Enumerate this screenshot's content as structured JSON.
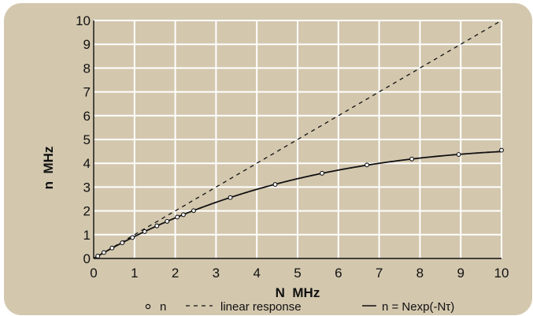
{
  "chart_data": {
    "type": "line",
    "xlabel": "N  MHz",
    "ylabel": "n  MHz",
    "xlim": [
      0,
      10
    ],
    "ylim": [
      0,
      10
    ],
    "xticks": [
      "0",
      "1",
      "2",
      "3",
      "4",
      "5",
      "6",
      "7",
      "8",
      "9",
      "10"
    ],
    "yticks": [
      "0",
      "1",
      "2",
      "3",
      "4",
      "5",
      "6",
      "7",
      "8",
      "9",
      "10"
    ],
    "grid": true,
    "legend_position": "bottom",
    "tau": 0.08,
    "series": [
      {
        "name": "n",
        "style": "markers",
        "x": [
          0.1,
          0.25,
          0.45,
          0.7,
          0.95,
          1.25,
          1.55,
          1.8,
          2.05,
          2.2,
          2.45,
          3.35,
          4.45,
          5.6,
          6.7,
          7.8,
          8.95,
          10.0
        ],
        "y": [
          0.1,
          0.25,
          0.44,
          0.66,
          0.88,
          1.13,
          1.37,
          1.56,
          1.74,
          1.84,
          2.01,
          2.56,
          3.11,
          3.58,
          3.93,
          4.18,
          4.37,
          4.55
        ]
      },
      {
        "name": "linear response",
        "style": "dashed",
        "x": [
          0,
          10
        ],
        "y": [
          0,
          10
        ]
      },
      {
        "name": "n = Nexp(-Nτ)",
        "style": "solid",
        "function": "N*exp(-N*tau)"
      }
    ],
    "legend": [
      {
        "symbol": "o",
        "label": "n"
      },
      {
        "symbol": "- -",
        "label": "linear response"
      },
      {
        "symbol": "—",
        "label": "n = Nexp(-Nτ)"
      }
    ]
  },
  "colors": {
    "background": "#d3c7ae",
    "plot_area": "#d3c7ae",
    "grid": "#ffffff",
    "series": "#111111"
  }
}
